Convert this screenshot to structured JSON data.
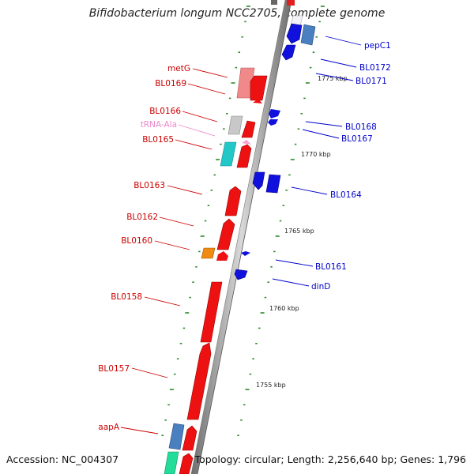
{
  "title": "Bifidobacterium longum NCC2705, complete genome",
  "accession": "Accession: NC_004307",
  "summary": "Topology: circular; Length: 2,256,640 bp; Genes: 1,796",
  "colors": {
    "backbone": "#8c8c8c",
    "ticks": "#2a8a2a",
    "forward_label": "#cc0000",
    "reverse_label": "#0000cc",
    "trna_label": "#ee88cc",
    "forward_gene": "#ee1111",
    "reverse_gene": "#1111dd"
  },
  "ruler_labels": [
    "1775 kbp",
    "1770 kbp",
    "1765 kbp",
    "1760 kbp",
    "1755 kbp"
  ],
  "left_labels": [
    {
      "id": "metG",
      "text": "metG",
      "color": "#cc0000"
    },
    {
      "id": "bl0169",
      "text": "BL0169",
      "color": "#cc0000"
    },
    {
      "id": "bl0166",
      "text": "BL0166",
      "color": "#cc0000"
    },
    {
      "id": "trna-ala",
      "text": "tRNA-Ala",
      "color": "#ee88cc"
    },
    {
      "id": "bl0165",
      "text": "BL0165",
      "color": "#cc0000"
    },
    {
      "id": "bl0163",
      "text": "BL0163",
      "color": "#cc0000"
    },
    {
      "id": "bl0162",
      "text": "BL0162",
      "color": "#cc0000"
    },
    {
      "id": "bl0160",
      "text": "BL0160",
      "color": "#cc0000"
    },
    {
      "id": "bl0158",
      "text": "BL0158",
      "color": "#cc0000"
    },
    {
      "id": "bl0157",
      "text": "BL0157",
      "color": "#cc0000"
    },
    {
      "id": "aapa",
      "text": "aapA",
      "color": "#cc0000"
    }
  ],
  "right_labels": [
    {
      "id": "pepc1",
      "text": "pepC1",
      "color": "#0000cc"
    },
    {
      "id": "bl0172",
      "text": "BL0172",
      "color": "#0000cc"
    },
    {
      "id": "bl0171",
      "text": "BL0171",
      "color": "#0000cc"
    },
    {
      "id": "bl0168",
      "text": "BL0168",
      "color": "#0000cc"
    },
    {
      "id": "bl0167",
      "text": "BL0167",
      "color": "#0000cc"
    },
    {
      "id": "bl0164",
      "text": "BL0164",
      "color": "#0000cc"
    },
    {
      "id": "bl0161",
      "text": "BL0161",
      "color": "#0000cc"
    },
    {
      "id": "dind",
      "text": "dinD",
      "color": "#0000cc"
    }
  ]
}
